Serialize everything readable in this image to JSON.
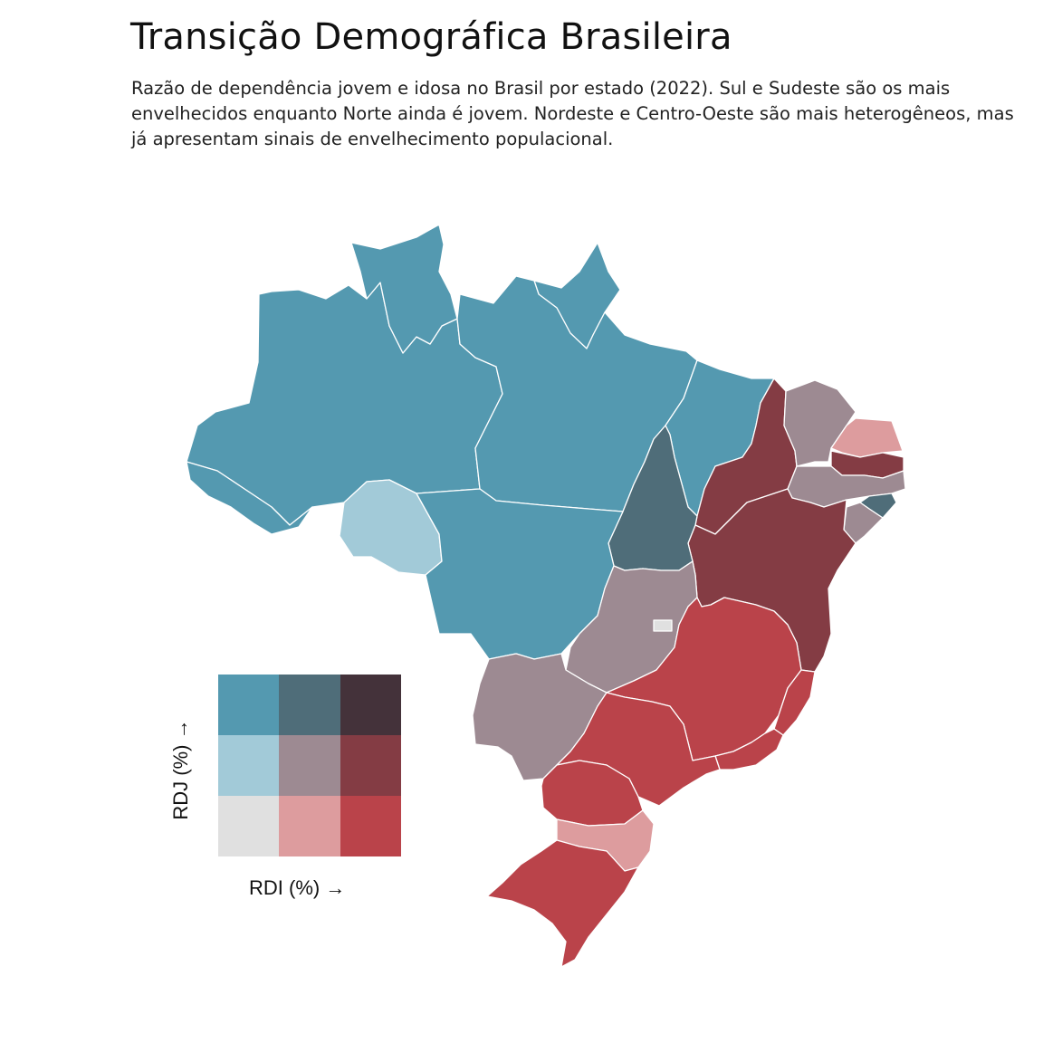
{
  "title": "Transição Demográfica Brasileira",
  "subtitle": "Razão de dependência jovem e idosa no Brasil por estado (2022). Sul e Sudeste são os mais envelhecidos enquanto Norte ainda é jovem. Nordeste e Centro-Oeste são mais heterogêneos, mas já apresentam sinais de envelhecimento populacional.",
  "palette": {
    "rdi_low_rdj_high": "#5499b0",
    "rdi_mid_rdj_high": "#4f6d79",
    "rdi_high_rdj_high": "#44323a",
    "rdi_low_rdj_mid": "#a2cad8",
    "rdi_mid_rdj_mid": "#9d8a92",
    "rdi_high_rdj_mid": "#843c44",
    "rdi_low_rdj_low": "#e0e0e0",
    "rdi_mid_rdj_low": "#dd9c9e",
    "rdi_high_rdj_low": "#ba434a"
  },
  "legend": {
    "x_label": "RDI (%) →",
    "y_label": "RDJ (%) →",
    "grid": [
      [
        "rdi_low_rdj_high",
        "rdi_mid_rdj_high",
        "rdi_high_rdj_high"
      ],
      [
        "rdi_low_rdj_mid",
        "rdi_mid_rdj_mid",
        "rdi_high_rdj_mid"
      ],
      [
        "rdi_low_rdj_low",
        "rdi_mid_rdj_low",
        "rdi_high_rdj_low"
      ]
    ]
  },
  "map_data": {
    "regions": [
      {
        "id": "AC",
        "class": "rdi_low_rdj_high"
      },
      {
        "id": "AM",
        "class": "rdi_low_rdj_high"
      },
      {
        "id": "RR",
        "class": "rdi_low_rdj_high"
      },
      {
        "id": "AP",
        "class": "rdi_low_rdj_high"
      },
      {
        "id": "PA",
        "class": "rdi_low_rdj_high"
      },
      {
        "id": "MT",
        "class": "rdi_low_rdj_high"
      },
      {
        "id": "MA",
        "class": "rdi_low_rdj_high"
      },
      {
        "id": "RO",
        "class": "rdi_low_rdj_mid"
      },
      {
        "id": "TO",
        "class": "rdi_mid_rdj_high"
      },
      {
        "id": "AL",
        "class": "rdi_mid_rdj_high"
      },
      {
        "id": "CE",
        "class": "rdi_mid_rdj_mid"
      },
      {
        "id": "PE",
        "class": "rdi_mid_rdj_mid"
      },
      {
        "id": "SE",
        "class": "rdi_mid_rdj_mid"
      },
      {
        "id": "GO",
        "class": "rdi_mid_rdj_mid"
      },
      {
        "id": "MS",
        "class": "rdi_mid_rdj_mid"
      },
      {
        "id": "PI",
        "class": "rdi_high_rdj_mid"
      },
      {
        "id": "PB",
        "class": "rdi_high_rdj_mid"
      },
      {
        "id": "BA",
        "class": "rdi_high_rdj_mid"
      },
      {
        "id": "RN",
        "class": "rdi_mid_rdj_low"
      },
      {
        "id": "SC",
        "class": "rdi_mid_rdj_low"
      },
      {
        "id": "DF",
        "class": "rdi_low_rdj_low"
      },
      {
        "id": "MG",
        "class": "rdi_high_rdj_low"
      },
      {
        "id": "ES",
        "class": "rdi_high_rdj_low"
      },
      {
        "id": "RJ",
        "class": "rdi_high_rdj_low"
      },
      {
        "id": "SP",
        "class": "rdi_high_rdj_low"
      },
      {
        "id": "PR",
        "class": "rdi_high_rdj_low"
      },
      {
        "id": "RS",
        "class": "rdi_high_rdj_low"
      }
    ]
  }
}
